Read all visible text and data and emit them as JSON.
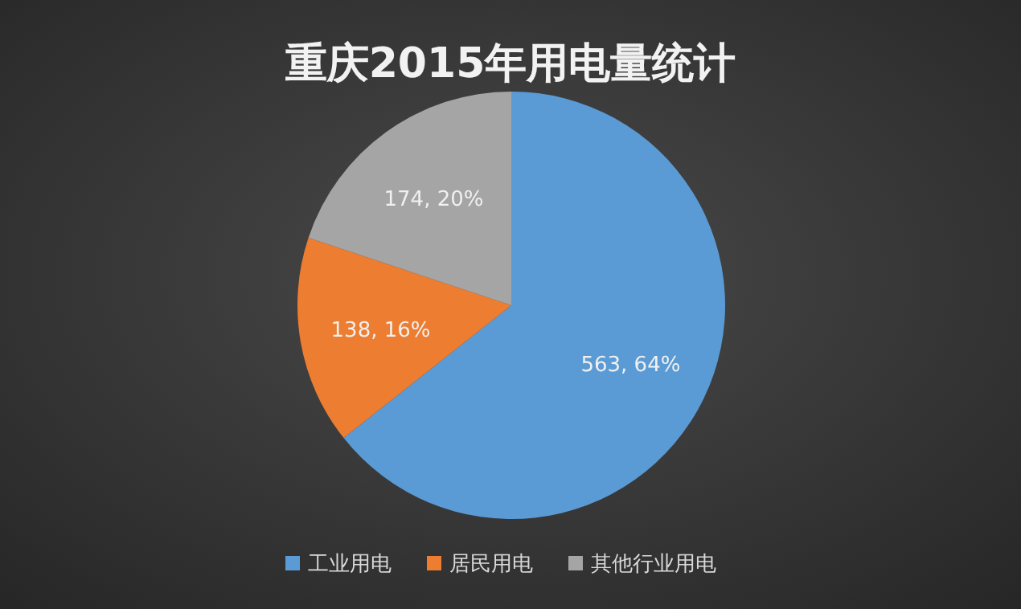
{
  "chart_data": {
    "type": "pie",
    "title": "重庆2015年用电量统计",
    "categories": [
      "工业用电",
      "居民用电",
      "其他行业用电"
    ],
    "values": [
      563,
      138,
      174
    ],
    "colors": [
      "#5b9bd5",
      "#ed7d31",
      "#a5a5a5"
    ],
    "value_labels": [
      "563, 64%",
      "138, 16%",
      "174, 20%"
    ],
    "legend": "bottom"
  }
}
